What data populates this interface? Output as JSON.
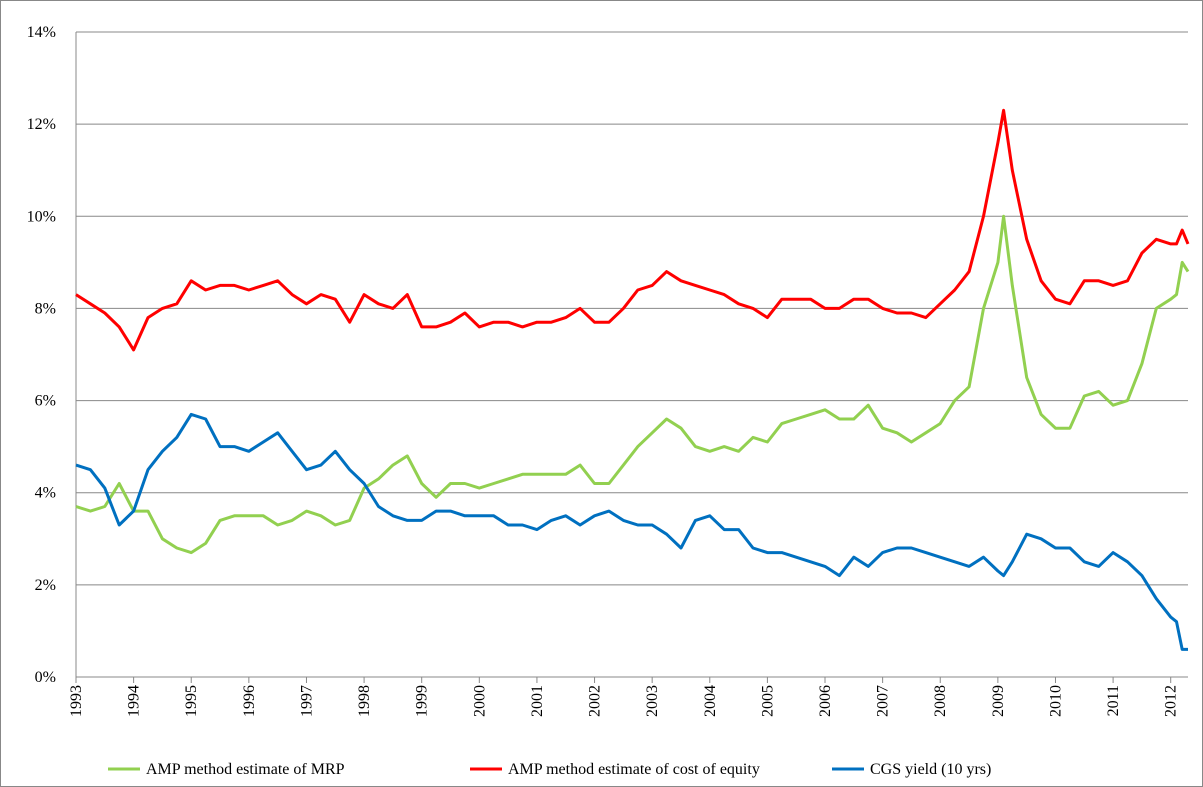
{
  "chart_data": {
    "type": "line",
    "x": [
      1993,
      1993.25,
      1993.5,
      1993.75,
      1994,
      1994.25,
      1994.5,
      1994.75,
      1995,
      1995.25,
      1995.5,
      1995.75,
      1996,
      1996.25,
      1996.5,
      1996.75,
      1997,
      1997.25,
      1997.5,
      1997.75,
      1998,
      1998.25,
      1998.5,
      1998.75,
      1999,
      1999.25,
      1999.5,
      1999.75,
      2000,
      2000.25,
      2000.5,
      2000.75,
      2001,
      2001.25,
      2001.5,
      2001.75,
      2002,
      2002.25,
      2002.5,
      2002.75,
      2003,
      2003.25,
      2003.5,
      2003.75,
      2004,
      2004.25,
      2004.5,
      2004.75,
      2005,
      2005.25,
      2005.5,
      2005.75,
      2006,
      2006.25,
      2006.5,
      2006.75,
      2007,
      2007.25,
      2007.5,
      2007.75,
      2008,
      2008.25,
      2008.5,
      2008.75,
      2009,
      2009.1,
      2009.25,
      2009.5,
      2009.75,
      2010,
      2010.25,
      2010.5,
      2010.75,
      2011,
      2011.25,
      2011.5,
      2011.75,
      2012,
      2012.1,
      2012.2,
      2012.3
    ],
    "series": [
      {
        "name": "AMP method estimate of MRP",
        "color": "#92d050",
        "values": [
          3.7,
          3.6,
          3.7,
          4.2,
          3.6,
          3.6,
          3.0,
          2.8,
          2.7,
          2.9,
          3.4,
          3.5,
          3.5,
          3.5,
          3.3,
          3.4,
          3.6,
          3.5,
          3.3,
          3.4,
          4.1,
          4.3,
          4.6,
          4.8,
          4.2,
          3.9,
          4.2,
          4.2,
          4.1,
          4.2,
          4.3,
          4.4,
          4.4,
          4.4,
          4.4,
          4.6,
          4.2,
          4.2,
          4.6,
          5.0,
          5.3,
          5.6,
          5.4,
          5.0,
          4.9,
          5.0,
          4.9,
          5.2,
          5.1,
          5.5,
          5.6,
          5.7,
          5.8,
          5.6,
          5.6,
          5.9,
          5.4,
          5.3,
          5.1,
          5.3,
          5.5,
          6.0,
          6.3,
          8.0,
          9.0,
          10.0,
          8.5,
          6.5,
          5.7,
          5.4,
          5.4,
          6.1,
          6.2,
          5.9,
          6.0,
          6.8,
          8.0,
          8.2,
          8.3,
          9.0,
          8.8
        ]
      },
      {
        "name": "AMP method estimate of cost of equity",
        "color": "#ff0000",
        "values": [
          8.3,
          8.1,
          7.9,
          7.6,
          7.1,
          7.8,
          8.0,
          8.1,
          8.6,
          8.4,
          8.5,
          8.5,
          8.4,
          8.5,
          8.6,
          8.3,
          8.1,
          8.3,
          8.2,
          7.7,
          8.3,
          8.1,
          8.0,
          8.3,
          7.6,
          7.6,
          7.7,
          7.9,
          7.6,
          7.7,
          7.7,
          7.6,
          7.7,
          7.7,
          7.8,
          8.0,
          7.7,
          7.7,
          8.0,
          8.4,
          8.5,
          8.8,
          8.6,
          8.5,
          8.4,
          8.3,
          8.1,
          8.0,
          7.8,
          8.2,
          8.2,
          8.2,
          8.0,
          8.0,
          8.2,
          8.2,
          8.0,
          7.9,
          7.9,
          7.8,
          8.1,
          8.4,
          8.8,
          10.0,
          11.6,
          12.3,
          11.0,
          9.5,
          8.6,
          8.2,
          8.1,
          8.6,
          8.6,
          8.5,
          8.6,
          9.2,
          9.5,
          9.4,
          9.4,
          9.7,
          9.4
        ]
      },
      {
        "name": "CGS yield (10 yrs)",
        "color": "#0070c0",
        "values": [
          4.6,
          4.5,
          4.1,
          3.3,
          3.6,
          4.5,
          4.9,
          5.2,
          5.7,
          5.6,
          5.0,
          5.0,
          4.9,
          5.1,
          5.3,
          4.9,
          4.5,
          4.6,
          4.9,
          4.5,
          4.2,
          3.7,
          3.5,
          3.4,
          3.4,
          3.6,
          3.6,
          3.5,
          3.5,
          3.5,
          3.3,
          3.3,
          3.2,
          3.4,
          3.5,
          3.3,
          3.5,
          3.6,
          3.4,
          3.3,
          3.3,
          3.1,
          2.8,
          3.4,
          3.5,
          3.2,
          3.2,
          2.8,
          2.7,
          2.7,
          2.6,
          2.5,
          2.4,
          2.2,
          2.6,
          2.4,
          2.7,
          2.8,
          2.8,
          2.7,
          2.6,
          2.5,
          2.4,
          2.6,
          2.3,
          2.2,
          2.5,
          3.1,
          3.0,
          2.8,
          2.8,
          2.5,
          2.4,
          2.7,
          2.5,
          2.2,
          1.7,
          1.3,
          1.2,
          0.6,
          0.6
        ]
      }
    ],
    "xlim": [
      1993,
      2012.3
    ],
    "xticks": [
      1993,
      1994,
      1995,
      1996,
      1997,
      1998,
      1999,
      2000,
      2001,
      2002,
      2003,
      2004,
      2005,
      2006,
      2007,
      2008,
      2009,
      2010,
      2011,
      2012
    ],
    "ylim": [
      0,
      14
    ],
    "yticks": [
      {
        "value": 0,
        "label": "0%"
      },
      {
        "value": 2,
        "label": "2%"
      },
      {
        "value": 4,
        "label": "4%"
      },
      {
        "value": 6,
        "label": "6%"
      },
      {
        "value": 8,
        "label": "8%"
      },
      {
        "value": 10,
        "label": "10%"
      },
      {
        "value": 12,
        "label": "12%"
      },
      {
        "value": 14,
        "label": "14%"
      }
    ],
    "grid": true,
    "legend": "bottom"
  }
}
